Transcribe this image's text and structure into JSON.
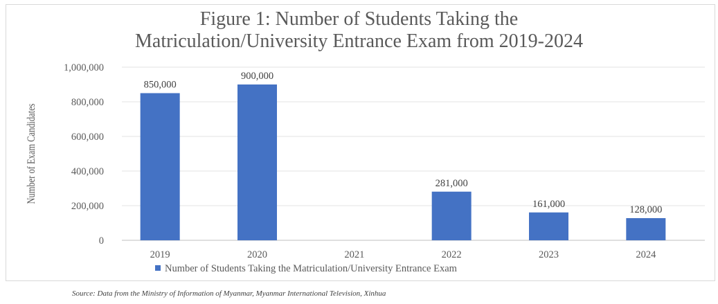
{
  "chart_data": {
    "type": "bar",
    "title_line1": "Figure 1: Number of Students Taking the",
    "title_line2": "Matriculation/University Entrance Exam from 2019-2024",
    "ylabel": "Number of Exam Candidates",
    "xlabel": "",
    "categories": [
      "2019",
      "2020",
      "2021",
      "2022",
      "2023",
      "2024"
    ],
    "series": [
      {
        "name": "Number of Students Taking the Matriculation/University Entrance Exam",
        "values": [
          850000,
          900000,
          null,
          281000,
          161000,
          128000
        ],
        "data_labels": [
          "850,000",
          "900,000",
          "",
          "281,000",
          "161,000",
          "128,000"
        ],
        "color": "#4472c4"
      }
    ],
    "ylim": [
      0,
      1000000
    ],
    "yticks": [
      0,
      200000,
      400000,
      600000,
      800000,
      1000000
    ],
    "ytick_labels": [
      "0",
      "200,000",
      "400,000",
      "600,000",
      "800,000",
      "1,000,000"
    ],
    "grid": true,
    "legend_position": "bottom"
  },
  "source": "Source: Data from the Ministry of Information of Myanmar, Myanmar International Television, Xinhua"
}
